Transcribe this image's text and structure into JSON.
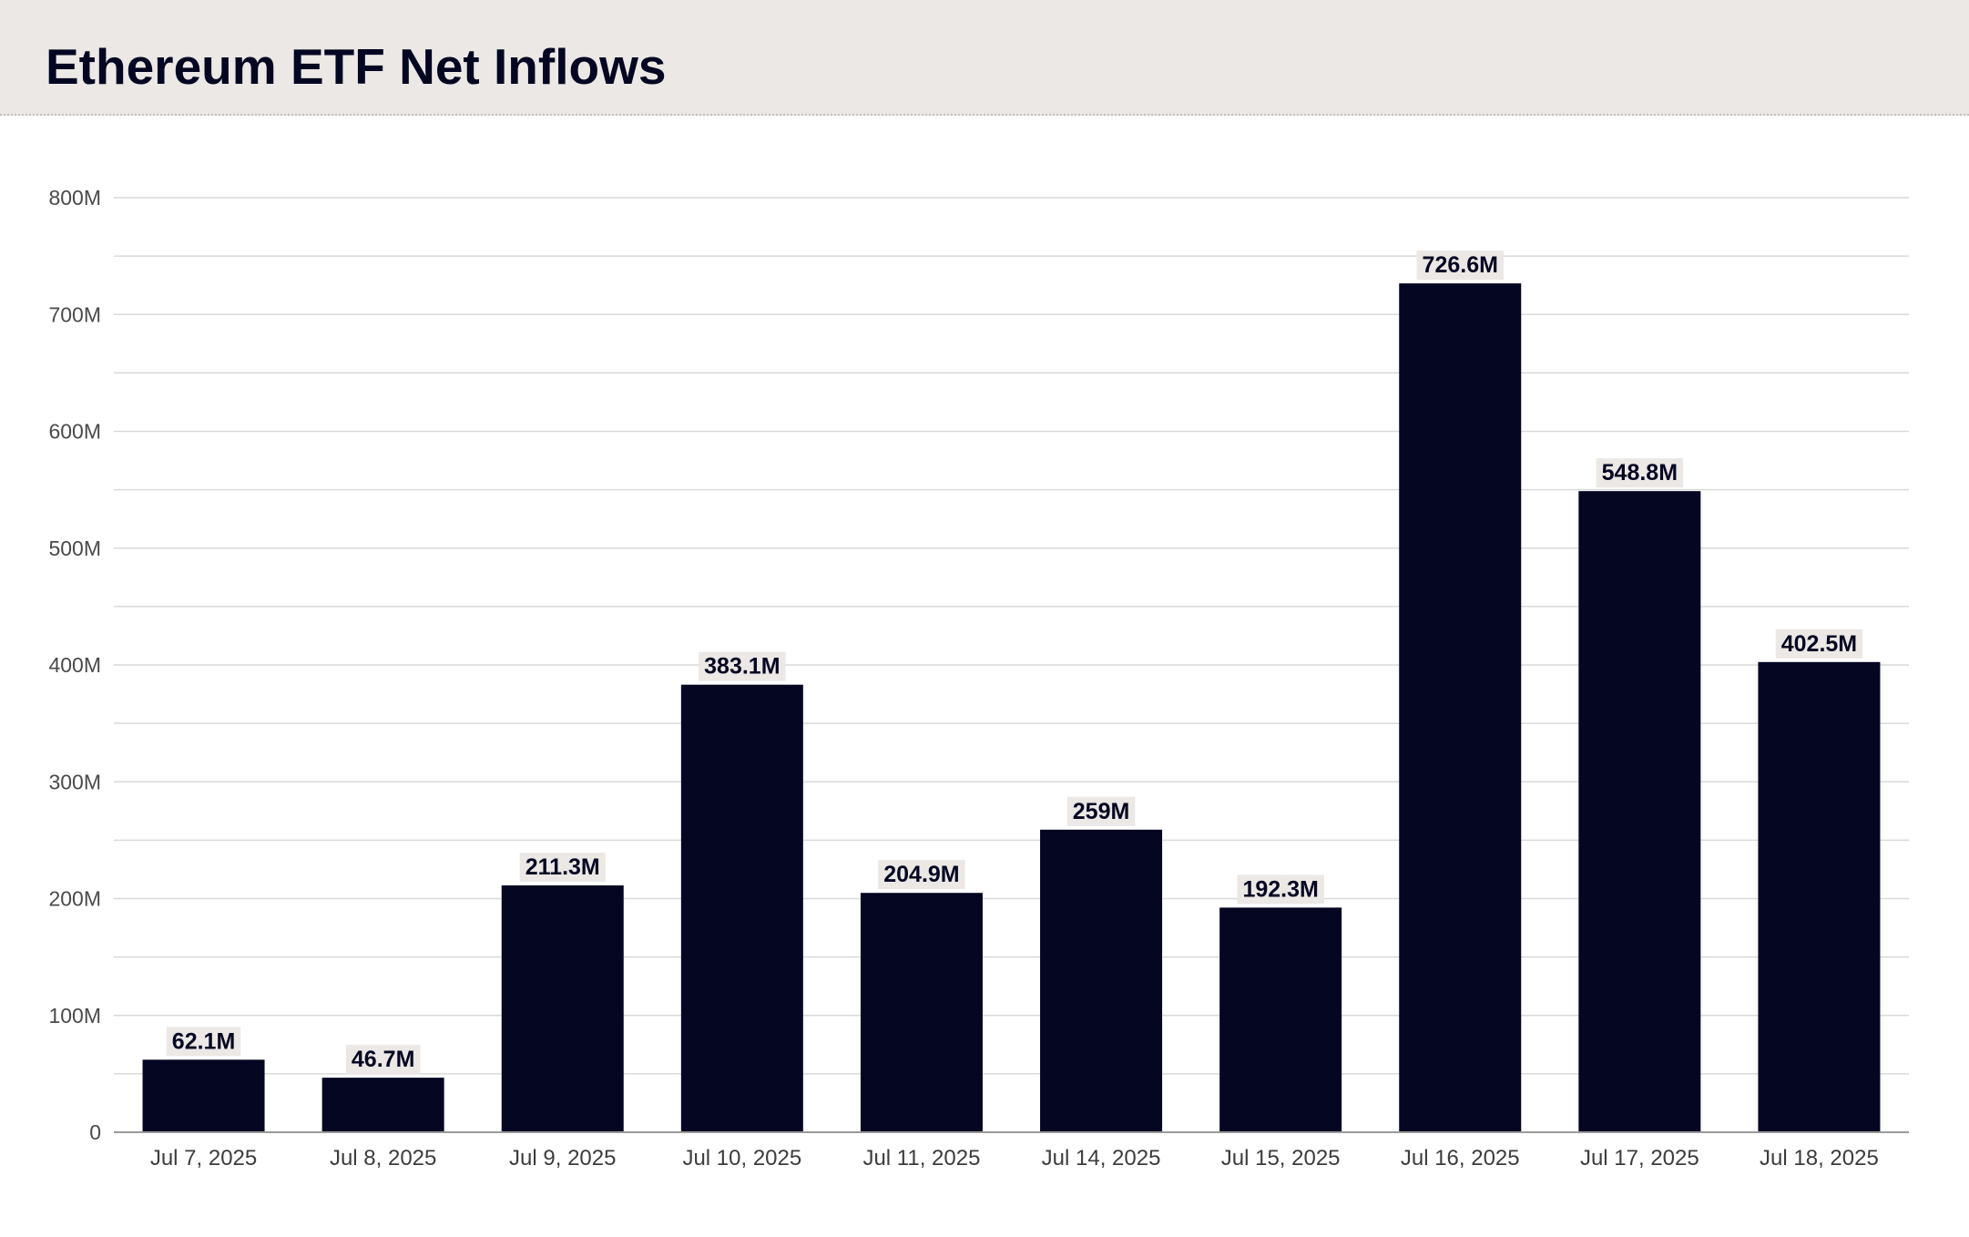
{
  "header": {
    "title": "Ethereum ETF Net Inflows"
  },
  "colors": {
    "bar": "#040622",
    "header_bg": "#ebe8e5",
    "label_bg": "#ebe8e5",
    "grid": "#d9d9d9",
    "axis": "#9a9a9a"
  },
  "chart_data": {
    "type": "bar",
    "title": "Ethereum ETF Net Inflows",
    "xlabel": "",
    "ylabel": "",
    "categories": [
      "Jul 7, 2025",
      "Jul 8, 2025",
      "Jul 9, 2025",
      "Jul 10, 2025",
      "Jul 11, 2025",
      "Jul 14, 2025",
      "Jul 15, 2025",
      "Jul 16, 2025",
      "Jul 17, 2025",
      "Jul 18, 2025"
    ],
    "values": [
      62.1,
      46.7,
      211.3,
      383.1,
      204.9,
      259,
      192.3,
      726.6,
      548.8,
      402.5
    ],
    "data_labels": [
      "62.1M",
      "46.7M",
      "211.3M",
      "383.1M",
      "204.9M",
      "259M",
      "192.3M",
      "726.6M",
      "548.8M",
      "402.5M"
    ],
    "value_unit": "M",
    "ylim": [
      0,
      800
    ],
    "yticks": [
      0,
      100,
      200,
      300,
      400,
      500,
      600,
      700,
      800
    ],
    "ytick_labels": [
      "0",
      "100M",
      "200M",
      "300M",
      "400M",
      "500M",
      "600M",
      "700M",
      "800M"
    ],
    "minor_gridlines_step": 50,
    "grid": true,
    "legend": "none"
  }
}
